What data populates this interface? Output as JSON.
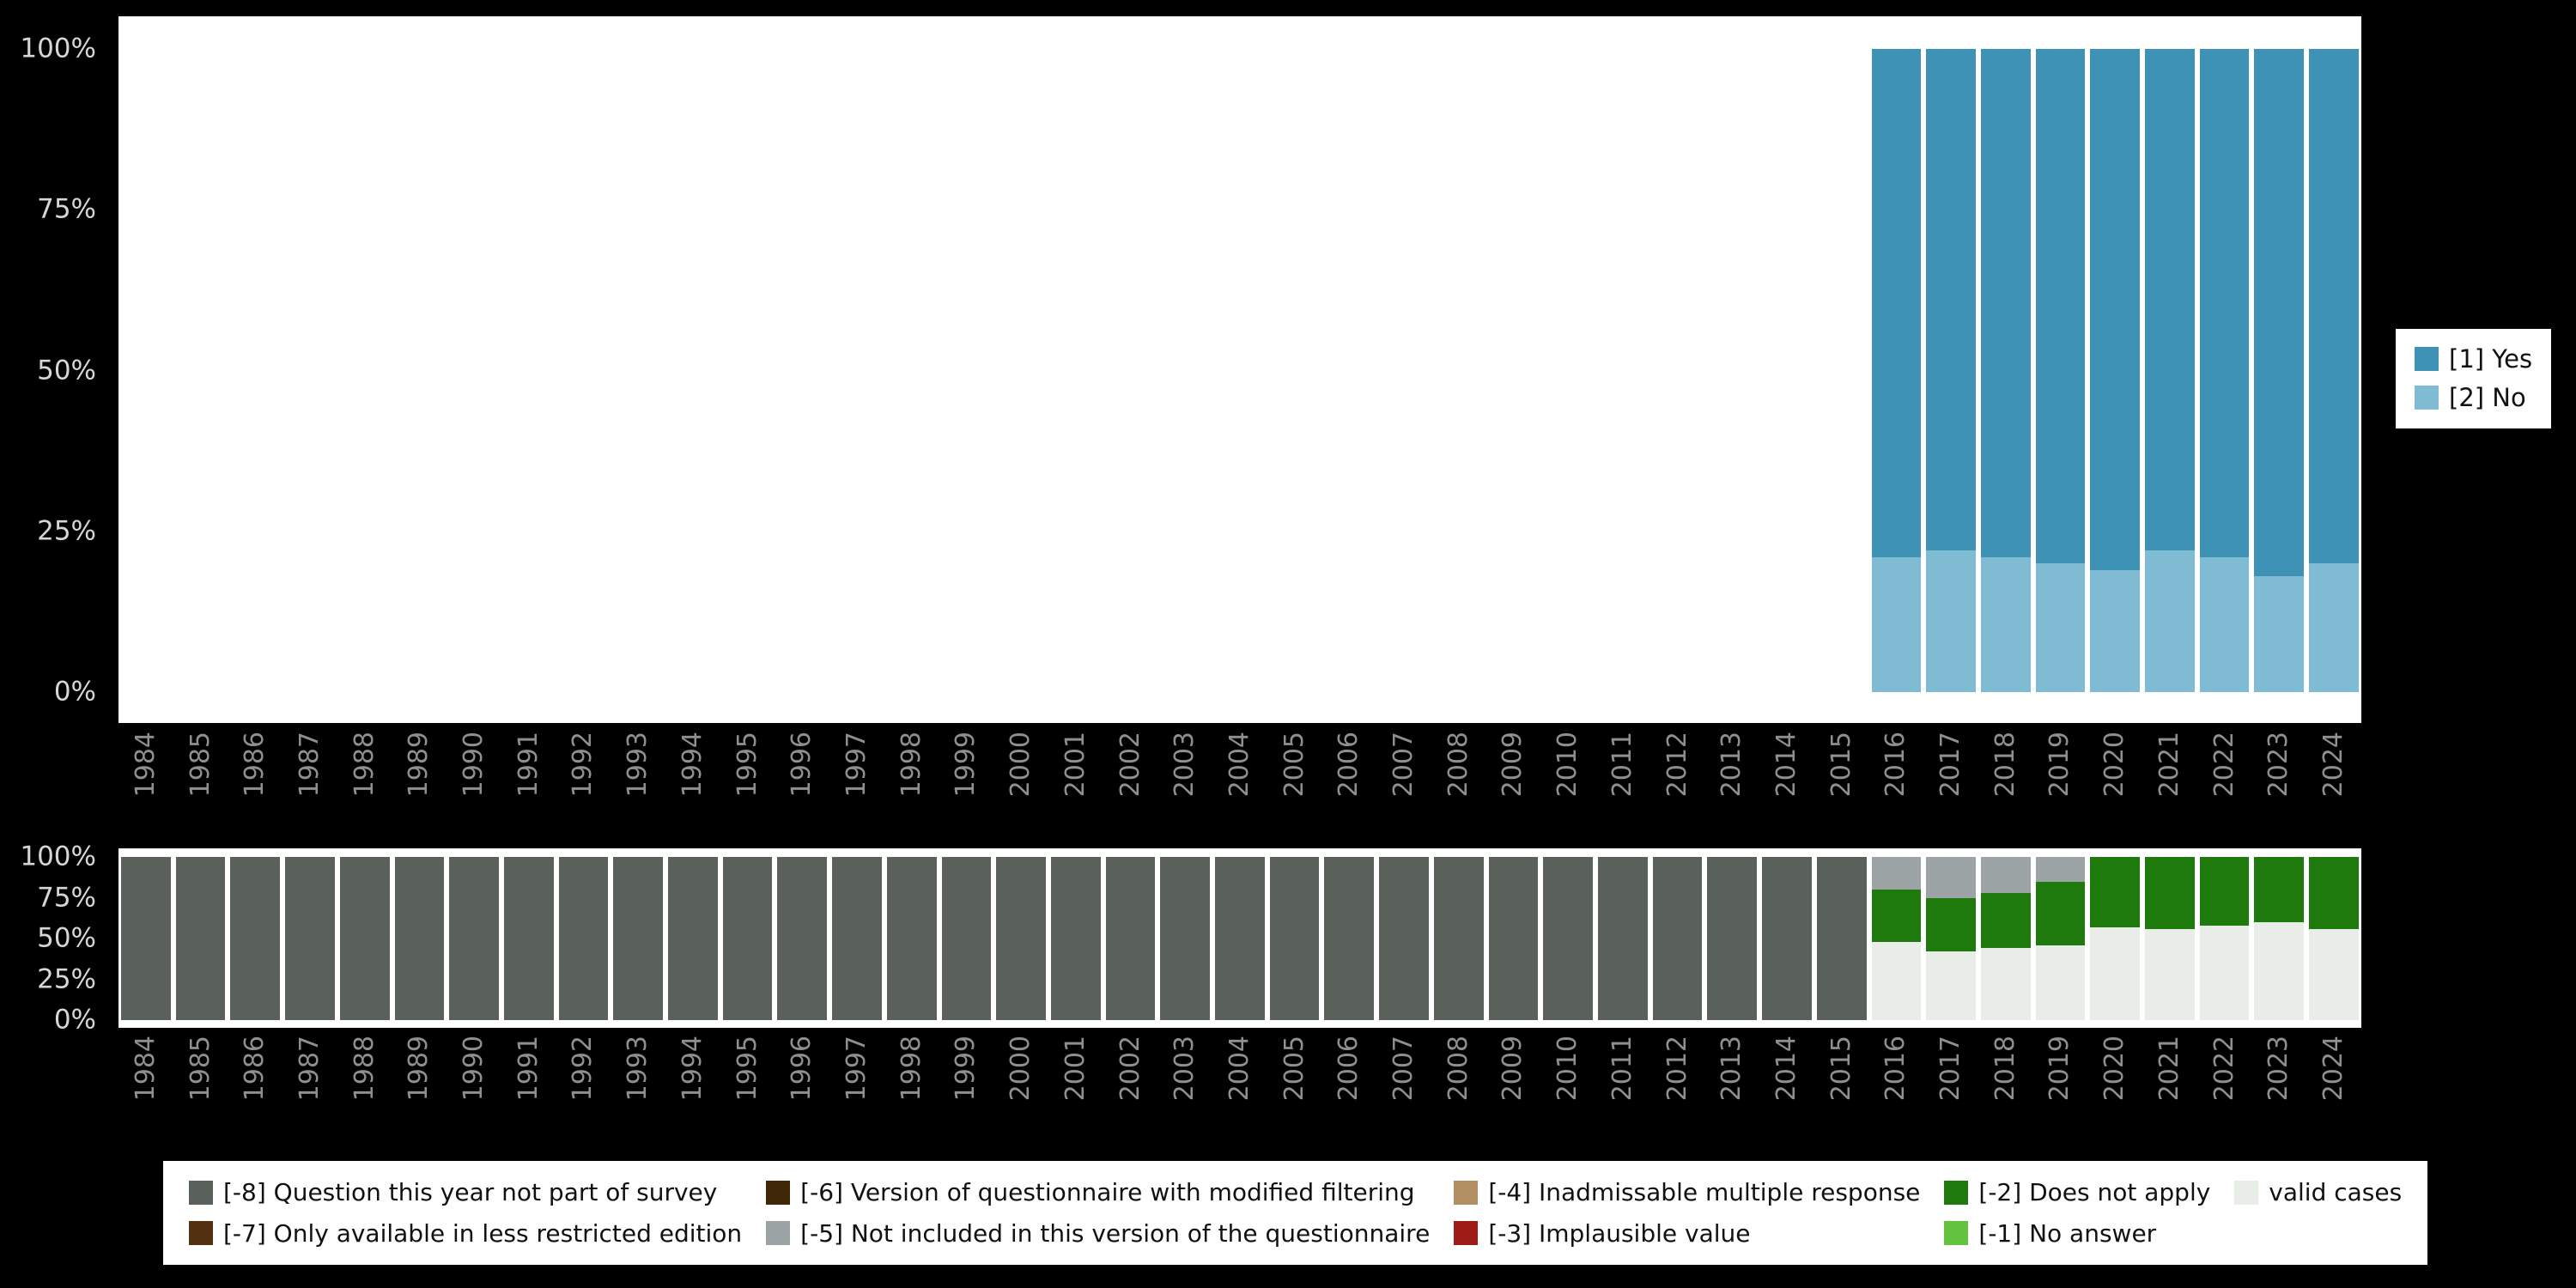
{
  "page": {
    "background": "#000000",
    "panel_background": "#ffffff",
    "x_axis_label_color": "#8f8f8f",
    "y_axis_label_color": "#d6d6d6"
  },
  "chart_data": [
    {
      "type": "bar",
      "stacked": true,
      "orientation": "vertical",
      "title": "",
      "xlabel": "",
      "ylabel": "",
      "grid": false,
      "ylim": [
        0,
        100
      ],
      "y_ticks": [
        "100%",
        "75%",
        "50%",
        "25%",
        "0%"
      ],
      "legend_position": "right",
      "categories": [
        "1984",
        "1985",
        "1986",
        "1987",
        "1988",
        "1989",
        "1990",
        "1991",
        "1992",
        "1993",
        "1994",
        "1995",
        "1996",
        "1997",
        "1998",
        "1999",
        "2000",
        "2001",
        "2002",
        "2003",
        "2004",
        "2005",
        "2006",
        "2007",
        "2008",
        "2009",
        "2010",
        "2011",
        "2012",
        "2013",
        "2014",
        "2015",
        "2016",
        "2017",
        "2018",
        "2019",
        "2020",
        "2021",
        "2022",
        "2023",
        "2024"
      ],
      "series": [
        {
          "key": "yes",
          "name": "[1] Yes",
          "color": "#3e92b5",
          "values": [
            null,
            null,
            null,
            null,
            null,
            null,
            null,
            null,
            null,
            null,
            null,
            null,
            null,
            null,
            null,
            null,
            null,
            null,
            null,
            null,
            null,
            null,
            null,
            null,
            null,
            null,
            null,
            null,
            null,
            null,
            null,
            null,
            79,
            78,
            79,
            80,
            81,
            78,
            79,
            82,
            80
          ]
        },
        {
          "key": "no",
          "name": "[2] No",
          "color": "#7fbcd4",
          "values": [
            null,
            null,
            null,
            null,
            null,
            null,
            null,
            null,
            null,
            null,
            null,
            null,
            null,
            null,
            null,
            null,
            null,
            null,
            null,
            null,
            null,
            null,
            null,
            null,
            null,
            null,
            null,
            null,
            null,
            null,
            null,
            null,
            21,
            22,
            21,
            20,
            19,
            22,
            21,
            18,
            20
          ]
        }
      ]
    },
    {
      "type": "bar",
      "stacked": true,
      "orientation": "vertical",
      "title": "",
      "xlabel": "",
      "ylabel": "",
      "grid": false,
      "ylim": [
        0,
        100
      ],
      "y_ticks": [
        "100%",
        "75%",
        "50%",
        "25%",
        "0%"
      ],
      "legend_position": "bottom",
      "categories": [
        "1984",
        "1985",
        "1986",
        "1987",
        "1988",
        "1989",
        "1990",
        "1991",
        "1992",
        "1993",
        "1994",
        "1995",
        "1996",
        "1997",
        "1998",
        "1999",
        "2000",
        "2001",
        "2002",
        "2003",
        "2004",
        "2005",
        "2006",
        "2007",
        "2008",
        "2009",
        "2010",
        "2011",
        "2012",
        "2013",
        "2014",
        "2015",
        "2016",
        "2017",
        "2018",
        "2019",
        "2020",
        "2021",
        "2022",
        "2023",
        "2024"
      ],
      "series": [
        {
          "key": "m8",
          "name": "[-8] Question this year not part of survey",
          "color": "#5a615b",
          "values": [
            100,
            100,
            100,
            100,
            100,
            100,
            100,
            100,
            100,
            100,
            100,
            100,
            100,
            100,
            100,
            100,
            100,
            100,
            100,
            100,
            100,
            100,
            100,
            100,
            100,
            100,
            100,
            100,
            100,
            100,
            100,
            100,
            0,
            0,
            0,
            0,
            0,
            0,
            0,
            0,
            0
          ]
        },
        {
          "key": "m5",
          "name": "[-5] Not included in this version of the questionnaire",
          "color": "#9ba3a4",
          "values": [
            0,
            0,
            0,
            0,
            0,
            0,
            0,
            0,
            0,
            0,
            0,
            0,
            0,
            0,
            0,
            0,
            0,
            0,
            0,
            0,
            0,
            0,
            0,
            0,
            0,
            0,
            0,
            0,
            0,
            0,
            0,
            0,
            20,
            25,
            22,
            15,
            0,
            0,
            0,
            0,
            0
          ]
        },
        {
          "key": "m2",
          "name": "[-2] Does not apply",
          "color": "#1f7a0e",
          "values": [
            0,
            0,
            0,
            0,
            0,
            0,
            0,
            0,
            0,
            0,
            0,
            0,
            0,
            0,
            0,
            0,
            0,
            0,
            0,
            0,
            0,
            0,
            0,
            0,
            0,
            0,
            0,
            0,
            0,
            0,
            0,
            0,
            32,
            33,
            34,
            39,
            43,
            44,
            42,
            40,
            44
          ]
        },
        {
          "key": "valid",
          "name": "valid cases",
          "color": "#e9ede7",
          "values": [
            0,
            0,
            0,
            0,
            0,
            0,
            0,
            0,
            0,
            0,
            0,
            0,
            0,
            0,
            0,
            0,
            0,
            0,
            0,
            0,
            0,
            0,
            0,
            0,
            0,
            0,
            0,
            0,
            0,
            0,
            0,
            0,
            48,
            42,
            44,
            46,
            57,
            56,
            58,
            60,
            56
          ]
        }
      ],
      "legend_items": [
        {
          "key": "m8",
          "name": "[-8] Question this year not part of survey",
          "color": "#5a615b"
        },
        {
          "key": "m7",
          "name": "[-7] Only available in less restricted edition",
          "color": "#53300f"
        },
        {
          "key": "m6",
          "name": "[-6] Version of questionnaire with modified filtering",
          "color": "#402708"
        },
        {
          "key": "m5",
          "name": "[-5] Not included in this version of the questionnaire",
          "color": "#9ba3a4"
        },
        {
          "key": "m4",
          "name": "[-4] Inadmissable multiple response",
          "color": "#b28f63"
        },
        {
          "key": "m3",
          "name": "[-3] Implausible value",
          "color": "#9e1b16"
        },
        {
          "key": "m2",
          "name": "[-2] Does not apply",
          "color": "#1f7a0e"
        },
        {
          "key": "m1",
          "name": "[-1] No answer",
          "color": "#63c33f"
        },
        {
          "key": "valid",
          "name": "valid cases",
          "color": "#e9ede7"
        }
      ]
    }
  ]
}
